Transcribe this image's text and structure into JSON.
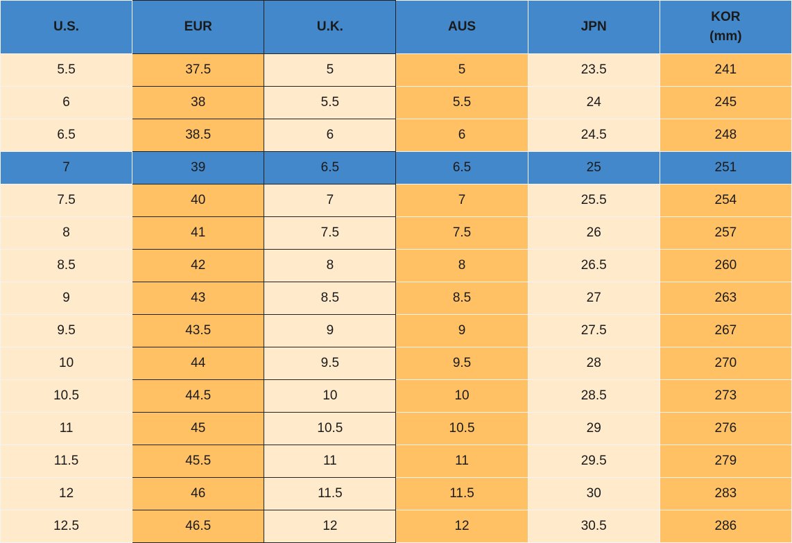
{
  "table": {
    "headers": [
      "U.S.",
      "EUR",
      "U.K.",
      "AUS",
      "JPN",
      "KOR\n(mm)"
    ],
    "rows": [
      [
        "5.5",
        "37.5",
        "5",
        "5",
        "23.5",
        "241"
      ],
      [
        "6",
        "38",
        "5.5",
        "5.5",
        "24",
        "245"
      ],
      [
        "6.5",
        "38.5",
        "6",
        "6",
        "24.5",
        "248"
      ],
      [
        "7",
        "39",
        "6.5",
        "6.5",
        "25",
        "251"
      ],
      [
        "7.5",
        "40",
        "7",
        "7",
        "25.5",
        "254"
      ],
      [
        "8",
        "41",
        "7.5",
        "7.5",
        "26",
        "257"
      ],
      [
        "8.5",
        "42",
        "8",
        "8",
        "26.5",
        "260"
      ],
      [
        "9",
        "43",
        "8.5",
        "8.5",
        "27",
        "263"
      ],
      [
        "9.5",
        "43.5",
        "9",
        "9",
        "27.5",
        "267"
      ],
      [
        "10",
        "44",
        "9.5",
        "9.5",
        "28",
        "270"
      ],
      [
        "10.5",
        "44.5",
        "10",
        "10",
        "28.5",
        "273"
      ],
      [
        "11",
        "45",
        "10.5",
        "10.5",
        "29",
        "276"
      ],
      [
        "11.5",
        "45.5",
        "11",
        "11",
        "29.5",
        "279"
      ],
      [
        "12",
        "46",
        "11.5",
        "11.5",
        "30",
        "283"
      ],
      [
        "12.5",
        "46.5",
        "12",
        "12",
        "30.5",
        "286"
      ]
    ]
  }
}
